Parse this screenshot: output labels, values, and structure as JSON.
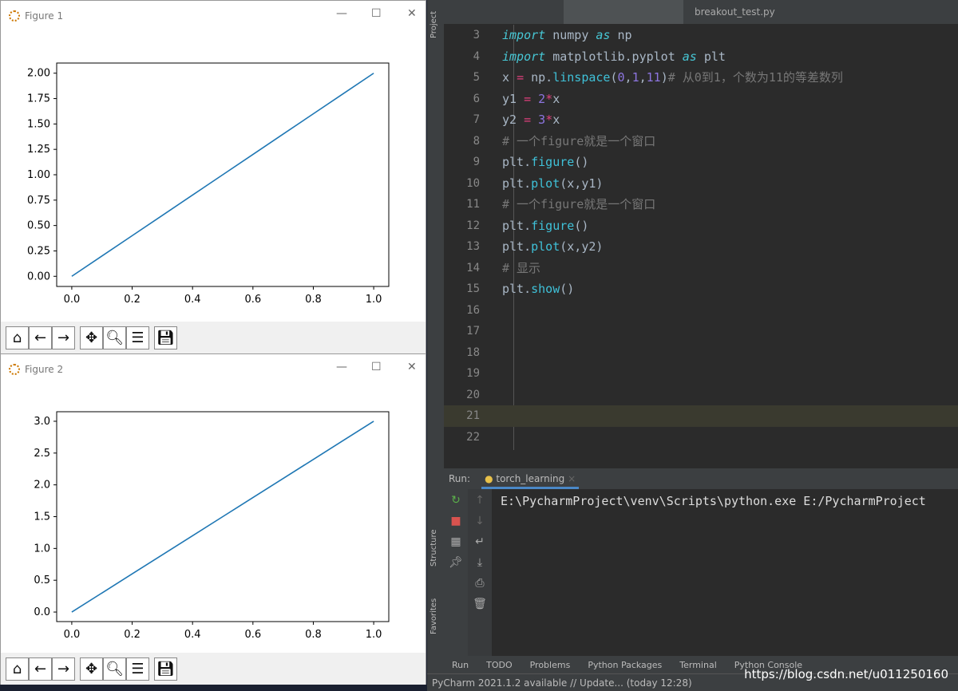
{
  "figures": [
    {
      "title": "Figure 1",
      "toolbar": [
        "home",
        "back",
        "forward",
        "pan",
        "zoom",
        "configure",
        "save"
      ]
    },
    {
      "title": "Figure 2",
      "toolbar": [
        "home",
        "back",
        "forward",
        "pan",
        "zoom",
        "configure",
        "save"
      ]
    }
  ],
  "chart_data": [
    {
      "type": "line",
      "x": [
        0,
        0.1,
        0.2,
        0.3,
        0.4,
        0.5,
        0.6,
        0.7,
        0.8,
        0.9,
        1.0
      ],
      "y": [
        0,
        0.2,
        0.4,
        0.6,
        0.8,
        1.0,
        1.2,
        1.4,
        1.6,
        1.8,
        2.0
      ],
      "xlim": [
        -0.05,
        1.05
      ],
      "ylim": [
        -0.1,
        2.1
      ],
      "xticks": [
        "0.0",
        "0.2",
        "0.4",
        "0.6",
        "0.8",
        "1.0"
      ],
      "yticks": [
        "0.00",
        "0.25",
        "0.50",
        "0.75",
        "1.00",
        "1.25",
        "1.50",
        "1.75",
        "2.00"
      ],
      "color": "#1f77b4"
    },
    {
      "type": "line",
      "x": [
        0,
        0.1,
        0.2,
        0.3,
        0.4,
        0.5,
        0.6,
        0.7,
        0.8,
        0.9,
        1.0
      ],
      "y": [
        0,
        0.3,
        0.6,
        0.9,
        1.2,
        1.5,
        1.8,
        2.1,
        2.4,
        2.7,
        3.0
      ],
      "xlim": [
        -0.05,
        1.05
      ],
      "ylim": [
        -0.15,
        3.15
      ],
      "xticks": [
        "0.0",
        "0.2",
        "0.4",
        "0.6",
        "0.8",
        "1.0"
      ],
      "yticks": [
        "0.0",
        "0.5",
        "1.0",
        "1.5",
        "2.0",
        "2.5",
        "3.0"
      ],
      "color": "#1f77b4"
    }
  ],
  "ide": {
    "side": {
      "project": "Project",
      "structure": "Structure",
      "favorites": "Favorites"
    },
    "tabs": [
      "",
      "",
      "breakout_test.py",
      "",
      ""
    ],
    "lines": [
      {
        "n": "3",
        "html": "<span class=kw>import</span> numpy <span class=kw>as</span> np"
      },
      {
        "n": "4",
        "html": "<span class=kw>import</span> matplotlib.pyplot <span class=kw>as</span> plt"
      },
      {
        "n": "5",
        "html": "x <span class=op>=</span> np.<span class=fn>linspace</span>(<span class=num>0</span>,<span class=num>1</span>,<span class=num>11</span>)<span class=cm># 从0到1，个数为11的等差数列</span>"
      },
      {
        "n": "6",
        "html": "y1 <span class=op>=</span> <span class=num>2</span><span class=op>*</span>x"
      },
      {
        "n": "7",
        "html": "y2 <span class=op>=</span> <span class=num>3</span><span class=op>*</span>x"
      },
      {
        "n": "8",
        "html": "<span class=cm># 一个figure就是一个窗口</span>"
      },
      {
        "n": "9",
        "html": "plt.<span class=fn>figure</span>()"
      },
      {
        "n": "10",
        "html": "plt.<span class=fn>plot</span>(x,y1)"
      },
      {
        "n": "11",
        "html": "<span class=cm># 一个figure就是一个窗口</span>"
      },
      {
        "n": "12",
        "html": "plt.<span class=fn>figure</span>()"
      },
      {
        "n": "13",
        "html": "plt.<span class=fn>plot</span>(x,y2)"
      },
      {
        "n": "14",
        "html": "<span class=cm># 显示</span>"
      },
      {
        "n": "15",
        "html": "plt.<span class=fn>show</span>()"
      },
      {
        "n": "16",
        "html": ""
      },
      {
        "n": "17",
        "html": ""
      },
      {
        "n": "18",
        "html": ""
      },
      {
        "n": "19",
        "html": ""
      },
      {
        "n": "20",
        "html": ""
      },
      {
        "n": "21",
        "html": ""
      },
      {
        "n": "22",
        "html": ""
      }
    ],
    "run": {
      "label": "Run:",
      "tab": "torch_learning",
      "output": "E:\\PycharmProject\\venv\\Scripts\\python.exe E:/PycharmProject"
    },
    "bottom_tabs": [
      "Run",
      "TODO",
      "Problems",
      "Python Packages",
      "Terminal",
      "Python Console"
    ],
    "status": "PyCharm 2021.1.2 available // Update... (today 12:28)",
    "watermark": "https://blog.csdn.net/u011250160"
  }
}
